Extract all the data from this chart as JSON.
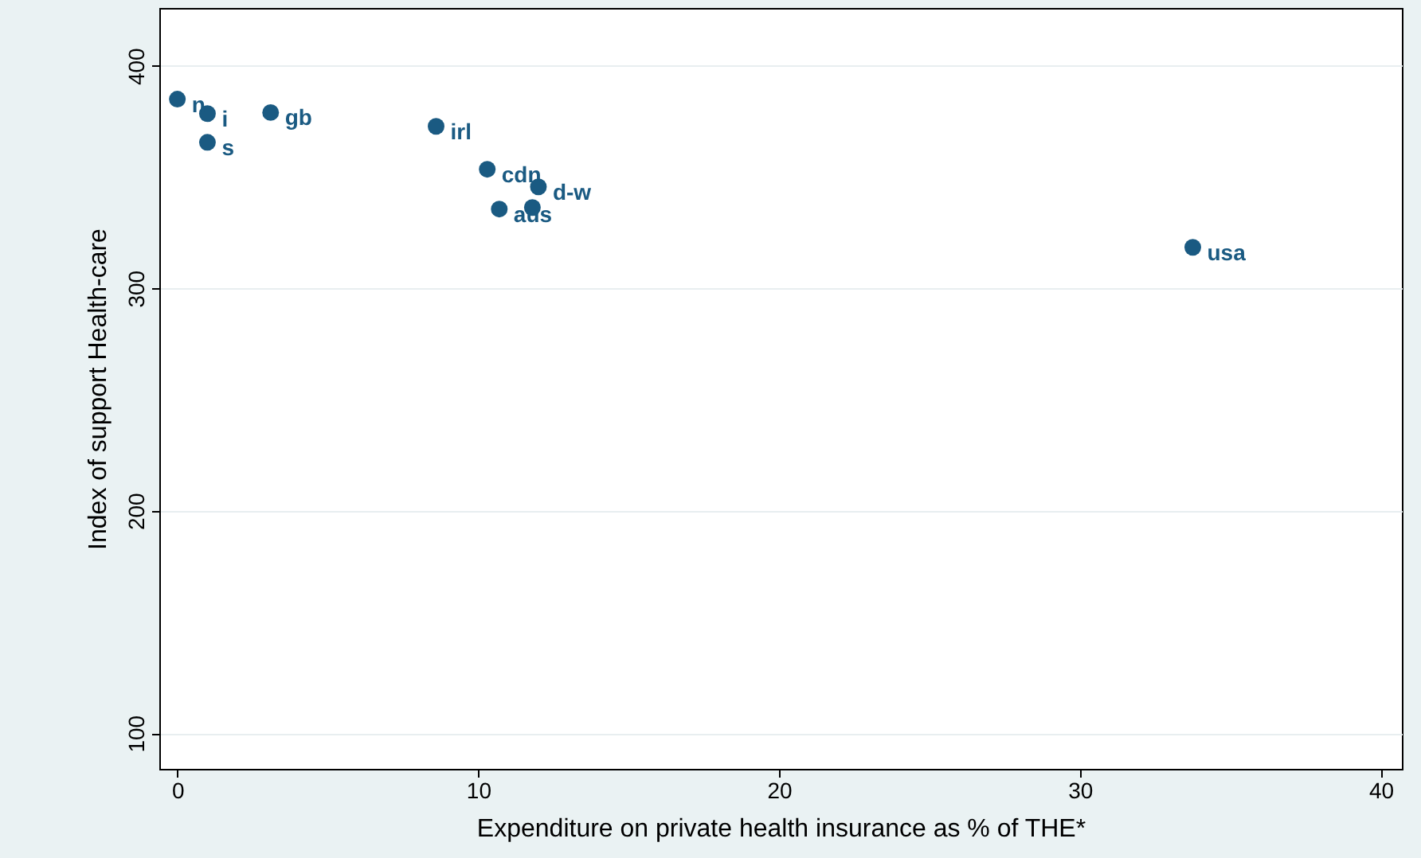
{
  "chart_data": {
    "type": "scatter",
    "xlabel": "Expenditure on private health insurance as % of THE*",
    "ylabel": "Index of support Health-care",
    "x": [
      0,
      1.0,
      1.0,
      3.1,
      8.6,
      10.3,
      12.0,
      10.7,
      11.8,
      33.75
    ],
    "series": [
      {
        "color": "#1a5a82",
        "values": [
          385,
          378.5,
          365.6,
          379,
          372.8,
          353.5,
          345.6,
          335.6,
          336.3,
          318.4
        ]
      }
    ],
    "annotations": [
      {
        "text": "n",
        "x": 0,
        "y": 385
      },
      {
        "text": "i",
        "x": 1.0,
        "y": 378.5
      },
      {
        "text": "s",
        "x": 1.0,
        "y": 365.6
      },
      {
        "text": "gb",
        "x": 3.1,
        "y": 379
      },
      {
        "text": "irl",
        "x": 8.6,
        "y": 372.8
      },
      {
        "text": "cdn",
        "x": 10.3,
        "y": 353.5
      },
      {
        "text": "d-w",
        "x": 12.0,
        "y": 345.6
      },
      {
        "text": "aus",
        "x": 10.7,
        "y": 335.6
      },
      {
        "text": "usa",
        "x": 33.75,
        "y": 318.4
      }
    ],
    "xlim": [
      -0.6,
      40.7
    ],
    "ylim": [
      84,
      426
    ],
    "xticks": [
      0,
      10,
      20,
      30,
      40
    ],
    "yticks": [
      100,
      200,
      300,
      400
    ],
    "grid": "y",
    "marker": "circle"
  }
}
